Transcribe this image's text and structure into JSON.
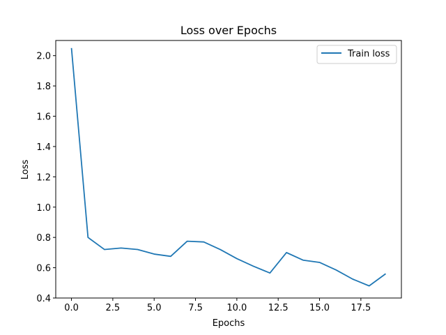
{
  "chart_data": {
    "type": "line",
    "title": "Loss over Epochs",
    "xlabel": "Epochs",
    "ylabel": "Loss",
    "xlim": [
      -0.95,
      19.95
    ],
    "ylim": [
      0.4,
      2.1
    ],
    "xticks": [
      0.0,
      2.5,
      5.0,
      7.5,
      10.0,
      12.5,
      15.0,
      17.5
    ],
    "xtick_labels": [
      "0.0",
      "2.5",
      "5.0",
      "7.5",
      "10.0",
      "12.5",
      "15.0",
      "17.5"
    ],
    "yticks": [
      0.4,
      0.6,
      0.8,
      1.0,
      1.2,
      1.4,
      1.6,
      1.8,
      2.0
    ],
    "ytick_labels": [
      "0.4",
      "0.6",
      "0.8",
      "1.0",
      "1.2",
      "1.4",
      "1.6",
      "1.8",
      "2.0"
    ],
    "grid": false,
    "legend_position": "top-right",
    "series": [
      {
        "name": "Train loss",
        "color": "#1f77b4",
        "x": [
          0,
          1,
          2,
          3,
          4,
          5,
          6,
          7,
          8,
          9,
          10,
          11,
          12,
          13,
          14,
          15,
          16,
          17,
          18,
          19
        ],
        "y": [
          2.05,
          0.8,
          0.72,
          0.73,
          0.72,
          0.69,
          0.675,
          0.775,
          0.77,
          0.72,
          0.66,
          0.61,
          0.565,
          0.7,
          0.65,
          0.635,
          0.585,
          0.525,
          0.48,
          0.56
        ]
      }
    ]
  }
}
